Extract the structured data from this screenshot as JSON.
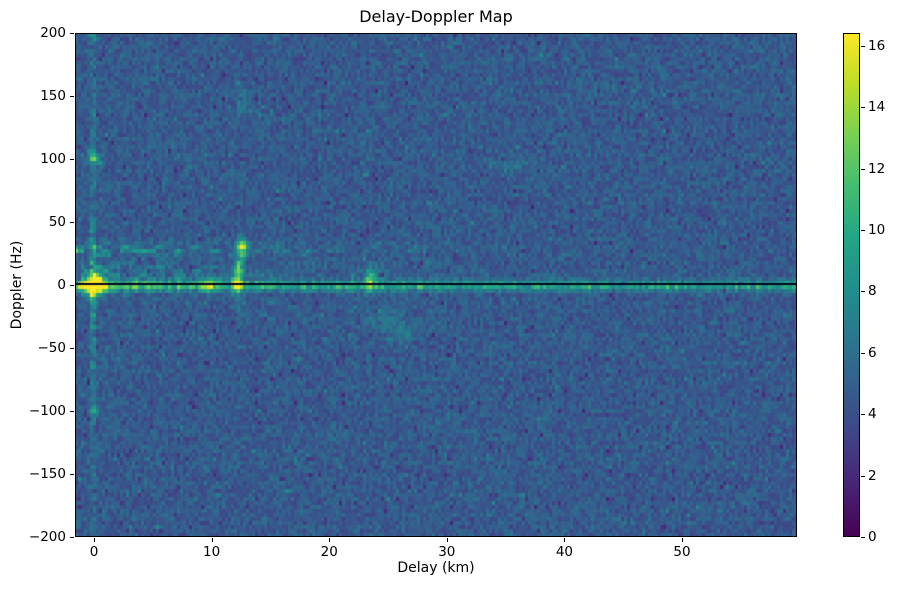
{
  "chart_data": {
    "type": "heatmap",
    "title": "Delay-Doppler Map",
    "xlabel": "Delay (km)",
    "ylabel": "Doppler (Hz)",
    "x_range": [
      -1.62,
      59.78
    ],
    "y_range": [
      -200,
      200
    ],
    "grid": false,
    "spine_color": "#000000",
    "background_color": "#ffffff",
    "x_ticks": [
      {
        "v": 0,
        "label": "0"
      },
      {
        "v": 10,
        "label": "10"
      },
      {
        "v": 20,
        "label": "20"
      },
      {
        "v": 30,
        "label": "30"
      },
      {
        "v": 40,
        "label": "40"
      },
      {
        "v": 50,
        "label": "50"
      }
    ],
    "y_ticks": [
      {
        "v": 200,
        "label": "200"
      },
      {
        "v": 150,
        "label": "150"
      },
      {
        "v": 100,
        "label": "100"
      },
      {
        "v": 50,
        "label": "50"
      },
      {
        "v": 0,
        "label": "0"
      },
      {
        "v": -50,
        "label": "−50"
      },
      {
        "v": -100,
        "label": "−100"
      },
      {
        "v": -150,
        "label": "−150"
      },
      {
        "v": -200,
        "label": "−200"
      }
    ],
    "colorbar": {
      "vmin": 0,
      "vmax": 16.42,
      "ticks": [
        {
          "v": 0,
          "label": "0"
        },
        {
          "v": 2,
          "label": "2"
        },
        {
          "v": 4,
          "label": "4"
        },
        {
          "v": 6,
          "label": "6"
        },
        {
          "v": 8,
          "label": "8"
        },
        {
          "v": 10,
          "label": "10"
        },
        {
          "v": 12,
          "label": "12"
        },
        {
          "v": 14,
          "label": "14"
        },
        {
          "v": 16,
          "label": "16"
        }
      ],
      "colormap": "viridis",
      "stops": [
        [
          0.0,
          [
            68,
            1,
            84
          ]
        ],
        [
          0.1,
          [
            72,
            35,
            116
          ]
        ],
        [
          0.2,
          [
            64,
            67,
            135
          ]
        ],
        [
          0.3,
          [
            52,
            94,
            141
          ]
        ],
        [
          0.4,
          [
            41,
            120,
            142
          ]
        ],
        [
          0.5,
          [
            32,
            144,
            140
          ]
        ],
        [
          0.6,
          [
            34,
            167,
            132
          ]
        ],
        [
          0.7,
          [
            68,
            190,
            112
          ]
        ],
        [
          0.8,
          [
            121,
            209,
            81
          ]
        ],
        [
          0.9,
          [
            189,
            222,
            38
          ]
        ],
        [
          1.0,
          [
            253,
            231,
            37
          ]
        ]
      ]
    },
    "noise": {
      "seed": 42,
      "base": 3.0,
      "spread1": 2.3,
      "spread2": 1.1,
      "dark_speck_prob": 0.045,
      "dark_speck_amount": 1.5,
      "bright_speck_threshold": 0.96,
      "bright_speck_gain": 1.8
    },
    "features": [
      {
        "name": "specular-peak",
        "type": "gauss",
        "d": 0,
        "f": 0,
        "sd": 0.5,
        "sf": 6,
        "amp": 14
      },
      {
        "name": "zero-delay-streak",
        "type": "vline",
        "d0": 0,
        "w": 0.28,
        "amp": 3.4,
        "f_decay": 60,
        "base": 0.8
      },
      {
        "name": "doppler-plus100-spot",
        "type": "gauss",
        "d": 0,
        "f": 100,
        "sd": 0.38,
        "sf": 3.5,
        "amp": 6
      },
      {
        "name": "doppler-minus100-spot",
        "type": "gauss",
        "d": 0,
        "f": -100,
        "sd": 0.33,
        "sf": 3,
        "amp": 4
      },
      {
        "name": "doppler-plus198-spot",
        "type": "gauss",
        "d": 0,
        "f": 198,
        "sd": 0.35,
        "sf": 2.5,
        "amp": 3.5
      },
      {
        "name": "zero-doppler-line",
        "type": "hline",
        "f0": -0.6,
        "sigma": 3.0,
        "fmax": 7,
        "amp_far": 4.3,
        "amp_near": 3.4,
        "decay": 9
      },
      {
        "name": "doppler-30-band",
        "type": "band",
        "fc": 28,
        "fs": 4,
        "amp": 3.2,
        "decay": 16,
        "gate": 0.42,
        "d_min": -1.62
      },
      {
        "name": "near-zero-band",
        "type": "band",
        "fc": 10,
        "fs": 5.5,
        "amp": 2.7,
        "decay": 13,
        "gate": 0.3,
        "d_min": -1.0
      },
      {
        "name": "below-zero-band",
        "type": "band",
        "fc": -6,
        "fs": 4,
        "amp": 1.4,
        "decay": 10,
        "gate": 0.35,
        "d_min": -1.0
      },
      {
        "name": "arc-12km-low",
        "type": "gauss",
        "d": 12.2,
        "f": 3,
        "sd": 0.25,
        "sf": 5,
        "amp": 10
      },
      {
        "name": "arc-12km-mid",
        "type": "gauss",
        "d": 12.35,
        "f": 15,
        "sd": 0.25,
        "sf": 4.5,
        "amp": 6.5
      },
      {
        "name": "arc-12km-high",
        "type": "gauss",
        "d": 12.6,
        "f": 30,
        "sd": 0.3,
        "sf": 5,
        "amp": 9.5
      },
      {
        "name": "arc-12km-tail",
        "type": "gauss",
        "d": 12.25,
        "f": -13,
        "sd": 0.35,
        "sf": 7,
        "amp": 2.2
      },
      {
        "name": "line-spot-10km",
        "type": "gauss",
        "d": 9.8,
        "f": 1,
        "sd": 0.4,
        "sf": 4.5,
        "amp": 5
      },
      {
        "name": "spike-23km",
        "type": "gauss",
        "d": 23.5,
        "f": 4,
        "sd": 0.28,
        "sf": 7,
        "amp": 7
      },
      {
        "name": "streak-140hz",
        "type": "gauss",
        "d": 12.55,
        "f": 143,
        "sd": 0.3,
        "sf": 7,
        "amp": 2.6
      },
      {
        "name": "smudge-35km",
        "type": "gauss",
        "d": 35.2,
        "f": 95,
        "sd": 1.3,
        "sf": 4,
        "amp": 1.7
      },
      {
        "name": "blob-25km-neg",
        "type": "gauss",
        "d": 24.8,
        "f": -27,
        "sd": 1.1,
        "sf": 7,
        "amp": 1.5
      },
      {
        "name": "blob-26km-neg",
        "type": "gauss",
        "d": 26.3,
        "f": -38,
        "sd": 0.9,
        "sf": 6,
        "amp": 1.3
      },
      {
        "name": "dark-zero-line",
        "type": "dark_hline",
        "f": 0.9,
        "thickness": 2,
        "color": "#03031c"
      }
    ]
  }
}
